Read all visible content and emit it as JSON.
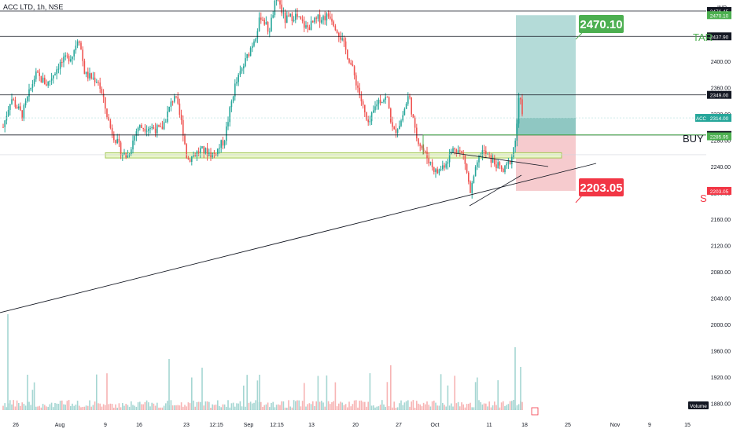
{
  "header": {
    "symbol_line": "ACC LTD, 1h, NSE"
  },
  "chart_data": {
    "type": "candlestick",
    "currency": "INR",
    "y_axis": {
      "min": 1840,
      "max": 2520,
      "ticks": [
        1880,
        1920,
        1960,
        2000,
        2040,
        2080,
        2120,
        2160,
        2200,
        2240,
        2280,
        2320,
        2360,
        2400,
        2440,
        2480
      ],
      "tick_labels": [
        "1880.00",
        "1920.00",
        "1960.00",
        "2000.00",
        "2040.00",
        "2080.00",
        "2120.00",
        "2160.00",
        "2200.00",
        "2240.00",
        "2280.00",
        "2320.00",
        "2360.00",
        "2400.00",
        "2440.00",
        "2480.00"
      ]
    },
    "x_axis": {
      "labels": [
        "26",
        "Aug",
        "9",
        "16",
        "23",
        "12:15",
        "Sep",
        "12:15",
        "13",
        "20",
        "27",
        "Oct",
        "11",
        "18",
        "25",
        "Nov",
        "9",
        "15"
      ]
    },
    "horizontal_levels": [
      {
        "price": 2476.45,
        "label": "2476.45",
        "color": "#131722"
      },
      {
        "price": 2437.9,
        "label": "2437.90",
        "color": "#131722"
      },
      {
        "price": 2349.0,
        "label": "2349.00",
        "color": "#131722"
      },
      {
        "price": 2288.0,
        "label": "2288.00",
        "color": "#131722"
      }
    ],
    "price_labels": [
      {
        "price": 2470.1,
        "label": "2470.10",
        "color": "#4caf50"
      },
      {
        "price": 2314.0,
        "label": "2314.00",
        "color": "#26a69a",
        "tag": "ACC"
      },
      {
        "price": 2285.95,
        "label": "2285.95",
        "color": "#4caf50"
      },
      {
        "price": 2203.05,
        "label": "2203.05",
        "color": "#f23645"
      }
    ],
    "position": {
      "type": "long",
      "entry": 2288.0,
      "target": 2470.1,
      "stop": 2203.05,
      "target_callout": "2470.10",
      "stop_callout": "2203.05"
    },
    "side_labels": {
      "target": "TAR",
      "buy": "BUY",
      "stop": "S"
    },
    "volume_label": "Volume",
    "colors": {
      "up": "#26a69a",
      "down": "#ef5350",
      "vol_up": "#a5d6d2",
      "vol_down": "#f7b4b4",
      "target_zone": "#a7d5d1",
      "stop_zone": "#f4c2c5",
      "support_zone": "#e8f5c8"
    }
  }
}
